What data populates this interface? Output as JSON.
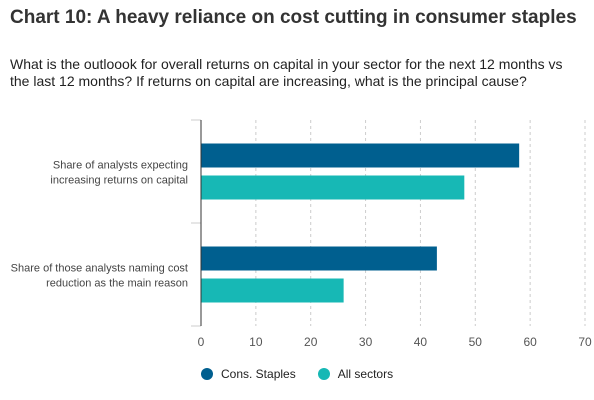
{
  "header": {
    "title": "Chart 10: A heavy reliance on cost cutting in consumer staples",
    "subtitle": "What is the outloook for overall returns on capital in your sector for the next 12 months vs the last 12 months? If returns on capital are increasing, what is the principal cause?"
  },
  "chart_data": {
    "type": "bar",
    "orientation": "horizontal",
    "categories": [
      [
        "Share of analysts expecting",
        "increasing returns on capital"
      ],
      [
        "Share of those analysts naming cost",
        "reduction as the main reason"
      ]
    ],
    "series": [
      {
        "name": "Cons. Staples",
        "values": [
          58,
          43
        ],
        "color": "#005f8f"
      },
      {
        "name": "All sectors",
        "values": [
          48,
          26
        ],
        "color": "#17b8b5"
      }
    ],
    "xlim": [
      0,
      70
    ],
    "xticks": [
      0,
      10,
      20,
      30,
      40,
      50,
      60,
      70
    ],
    "grid": "vertical dashed",
    "legend_position": "bottom-left"
  }
}
